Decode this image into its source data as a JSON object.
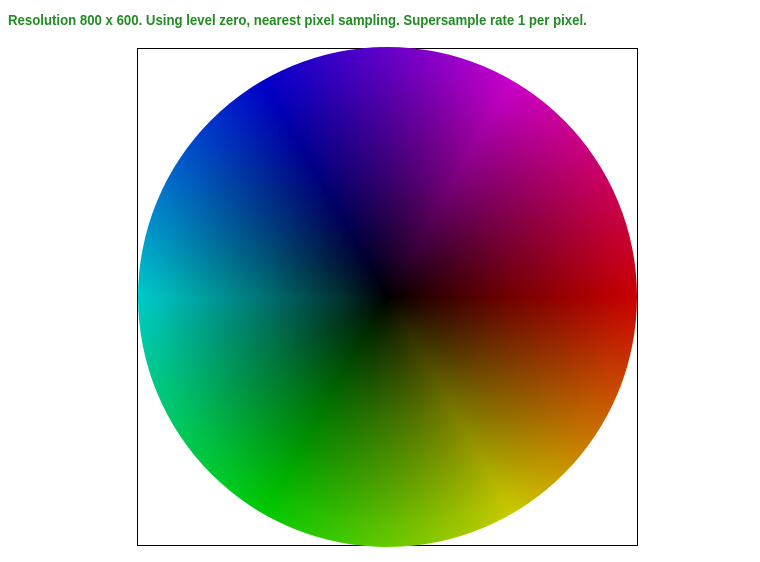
{
  "caption": "Resolution 800 x 600. Using level zero, nearest pixel sampling. Supersample rate 1 per pixel.",
  "colors": {
    "caption_text": "#228b22",
    "frame_border": "#000000",
    "background": "#ffffff"
  },
  "visualization": {
    "type": "color-wheel",
    "hue_at_right": "red",
    "center": "black"
  }
}
